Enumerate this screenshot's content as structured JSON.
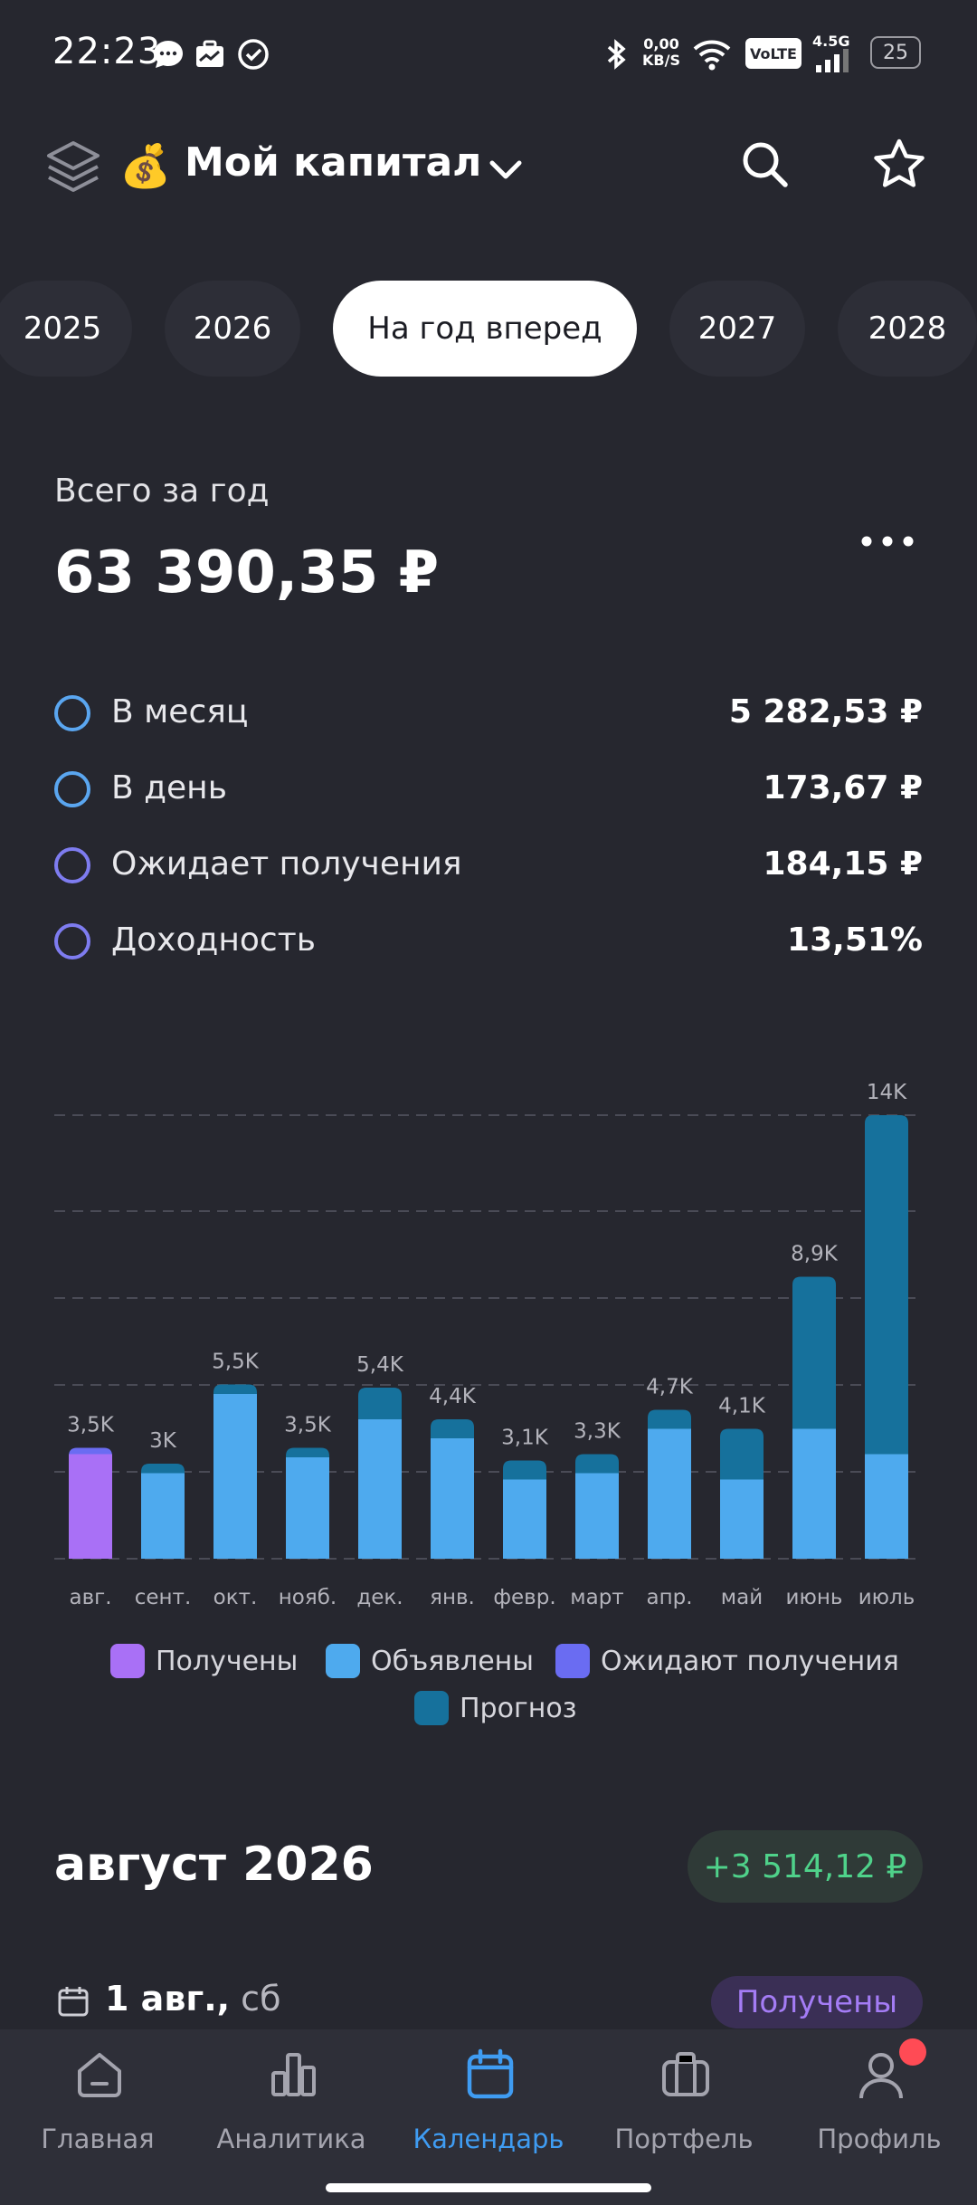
{
  "status_bar": {
    "time": "22:23",
    "net_speed_value": "0,00",
    "net_speed_unit": "KB/S",
    "volte": "VoLTE",
    "signal": "4.5G",
    "battery": "25"
  },
  "header": {
    "title": "Мой капитал",
    "title_emoji": "💰"
  },
  "tabs": [
    "2025",
    "2026",
    "На год вперед",
    "2027",
    "2028"
  ],
  "active_tab": 2,
  "summary": {
    "label": "Всего за год",
    "total": "63 390,35 ₽",
    "stats": [
      {
        "label": "В месяц",
        "value": "5 282,53 ₽",
        "color": "#5aa6f0"
      },
      {
        "label": "В день",
        "value": "173,67 ₽",
        "color": "#5aa6f0"
      },
      {
        "label": "Ожидает получения",
        "value": "184,15 ₽",
        "color": "#7e7cf0"
      },
      {
        "label": "Доходность",
        "value": "13,51%",
        "color": "#7e7cf0"
      }
    ]
  },
  "chart_data": {
    "type": "bar",
    "stacked": true,
    "grid": true,
    "legend_placement": "bottom",
    "ylim": [
      0,
      14000
    ],
    "categories": [
      "авг.",
      "сент.",
      "окт.",
      "нояб.",
      "дек.",
      "янв.",
      "февр.",
      "март",
      "апр.",
      "май",
      "июнь",
      "июль"
    ],
    "total_labels": [
      "3,5K",
      "3K",
      "5,5K",
      "3,5K",
      "5,4K",
      "4,4K",
      "3,1K",
      "3,3K",
      "4,7K",
      "4,1K",
      "8,9K",
      "14K"
    ],
    "series": [
      {
        "name": "Получены",
        "color": "#a970f6",
        "values": [
          3300,
          0,
          0,
          0,
          0,
          0,
          0,
          0,
          0,
          0,
          0,
          0
        ]
      },
      {
        "name": "Объявлены",
        "color": "#4eaaee",
        "values": [
          0,
          2700,
          5200,
          3200,
          4400,
          3800,
          2500,
          2700,
          4100,
          2500,
          4100,
          3300
        ]
      },
      {
        "name": "Ожидают получения",
        "color": "#6a6cf2",
        "values": [
          200,
          0,
          0,
          0,
          0,
          0,
          0,
          0,
          0,
          0,
          0,
          0
        ]
      },
      {
        "name": "Прогноз",
        "color": "#16719c",
        "values": [
          0,
          300,
          300,
          300,
          1000,
          600,
          600,
          600,
          600,
          1600,
          4800,
          10700
        ]
      }
    ]
  },
  "month": {
    "title": "август 2026",
    "total": "+3 514,12 ₽",
    "date_strong": "1 авг.,",
    "date_muted": " сб",
    "status": "Получены"
  },
  "nav": [
    {
      "label": "Главная",
      "icon": "home-icon"
    },
    {
      "label": "Аналитика",
      "icon": "analytics-icon"
    },
    {
      "label": "Календарь",
      "icon": "calendar-icon"
    },
    {
      "label": "Портфель",
      "icon": "briefcase-icon"
    },
    {
      "label": "Профиль",
      "icon": "profile-icon"
    }
  ],
  "active_nav": 2,
  "colors": {
    "background": "#26272f",
    "accent": "#3f9cf2",
    "positive": "#4fd28a",
    "received": "#a970f6"
  }
}
